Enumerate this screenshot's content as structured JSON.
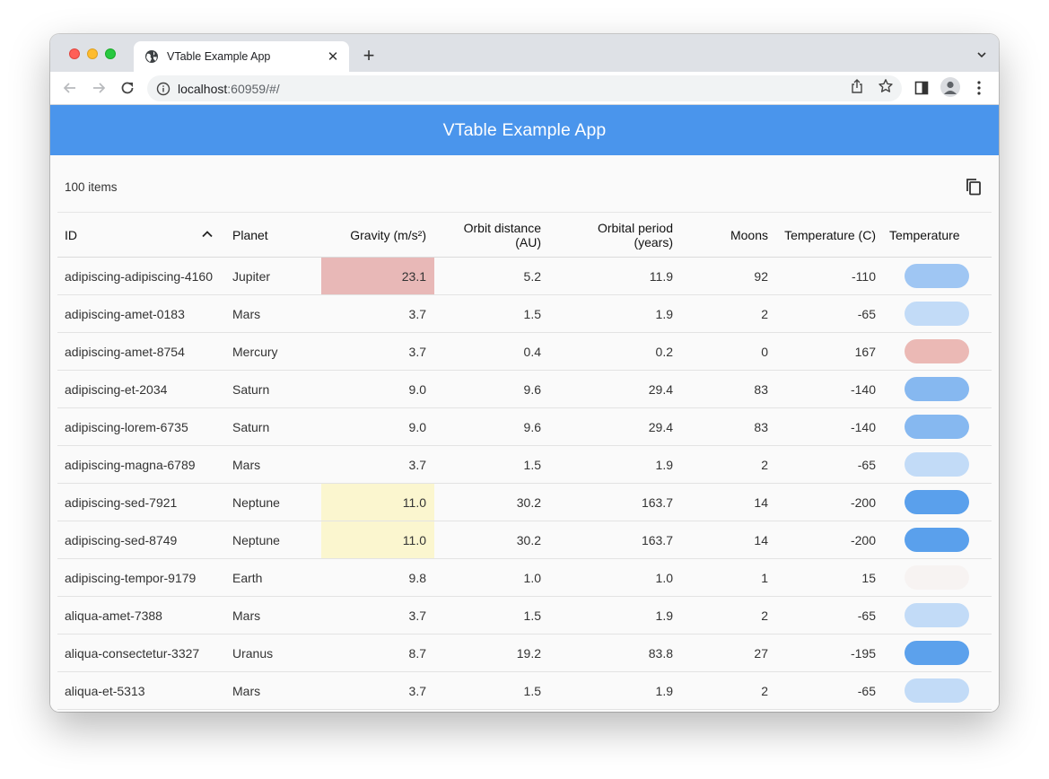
{
  "browser": {
    "tab_title": "VTable Example App",
    "url_host": "localhost",
    "url_rest": ":60959/#/"
  },
  "app": {
    "title": "VTable Example App"
  },
  "table": {
    "item_count": "100 items",
    "columns": {
      "id": "ID",
      "planet": "Planet",
      "gravity": "Gravity (m/s²)",
      "orbit_line1": "Orbit distance",
      "orbit_line2": "(AU)",
      "period_line1": "Orbital period",
      "period_line2": "(years)",
      "moons": "Moons",
      "temp": "Temperature (C)",
      "temp_bar": "Temperature"
    },
    "sort_column": "ID",
    "sort_direction": "ascending",
    "rows": [
      {
        "id": "adipiscing-adipiscing-4160",
        "planet": "Jupiter",
        "gravity": "23.1",
        "orbit": "5.2",
        "period": "11.9",
        "moons": "92",
        "temp": "-110",
        "grav_bg": "#e8b8b7",
        "bar_color": "#9fc6f3"
      },
      {
        "id": "adipiscing-amet-0183",
        "planet": "Mars",
        "gravity": "3.7",
        "orbit": "1.5",
        "period": "1.9",
        "moons": "2",
        "temp": "-65",
        "grav_bg": "",
        "bar_color": "#c2dbf7"
      },
      {
        "id": "adipiscing-amet-8754",
        "planet": "Mercury",
        "gravity": "3.7",
        "orbit": "0.4",
        "period": "0.2",
        "moons": "0",
        "temp": "167",
        "grav_bg": "",
        "bar_color": "#ebb9b5"
      },
      {
        "id": "adipiscing-et-2034",
        "planet": "Saturn",
        "gravity": "9.0",
        "orbit": "9.6",
        "period": "29.4",
        "moons": "83",
        "temp": "-140",
        "grav_bg": "",
        "bar_color": "#86b8f0"
      },
      {
        "id": "adipiscing-lorem-6735",
        "planet": "Saturn",
        "gravity": "9.0",
        "orbit": "9.6",
        "period": "29.4",
        "moons": "83",
        "temp": "-140",
        "grav_bg": "",
        "bar_color": "#86b8f0"
      },
      {
        "id": "adipiscing-magna-6789",
        "planet": "Mars",
        "gravity": "3.7",
        "orbit": "1.5",
        "period": "1.9",
        "moons": "2",
        "temp": "-65",
        "grav_bg": "",
        "bar_color": "#c2dbf7"
      },
      {
        "id": "adipiscing-sed-7921",
        "planet": "Neptune",
        "gravity": "11.0",
        "orbit": "30.2",
        "period": "163.7",
        "moons": "14",
        "temp": "-200",
        "grav_bg": "#fbf6cf",
        "bar_color": "#5aa0ec"
      },
      {
        "id": "adipiscing-sed-8749",
        "planet": "Neptune",
        "gravity": "11.0",
        "orbit": "30.2",
        "period": "163.7",
        "moons": "14",
        "temp": "-200",
        "grav_bg": "#fbf6cf",
        "bar_color": "#5aa0ec"
      },
      {
        "id": "adipiscing-tempor-9179",
        "planet": "Earth",
        "gravity": "9.8",
        "orbit": "1.0",
        "period": "1.0",
        "moons": "1",
        "temp": "15",
        "grav_bg": "",
        "bar_color": "#f7f3f2"
      },
      {
        "id": "aliqua-amet-7388",
        "planet": "Mars",
        "gravity": "3.7",
        "orbit": "1.5",
        "period": "1.9",
        "moons": "2",
        "temp": "-65",
        "grav_bg": "",
        "bar_color": "#c2dbf7"
      },
      {
        "id": "aliqua-consectetur-3327",
        "planet": "Uranus",
        "gravity": "8.7",
        "orbit": "19.2",
        "period": "83.8",
        "moons": "27",
        "temp": "-195",
        "grav_bg": "",
        "bar_color": "#5ca1ec"
      },
      {
        "id": "aliqua-et-5313",
        "planet": "Mars",
        "gravity": "3.7",
        "orbit": "1.5",
        "period": "1.9",
        "moons": "2",
        "temp": "-65",
        "grav_bg": "",
        "bar_color": "#c2dbf7"
      }
    ]
  },
  "icons": {
    "tab_favicon": "globe-icon",
    "copy": "copy-icon",
    "sort": "chevron-up-icon"
  }
}
